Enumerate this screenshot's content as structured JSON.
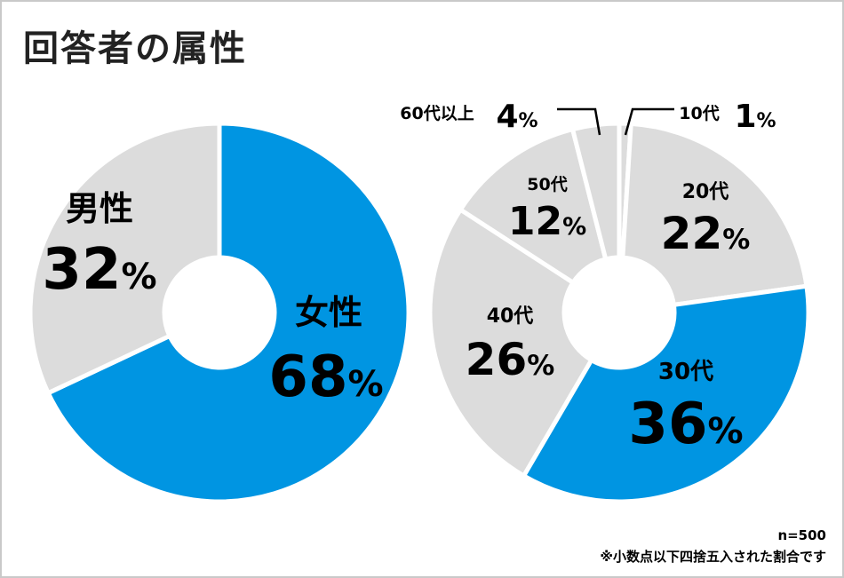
{
  "title": "回答者の属性",
  "colors": {
    "highlight": "#0095e2",
    "gray": "#dcdcdc",
    "divider": "#ffffff"
  },
  "chart_data": [
    {
      "type": "pie",
      "categories": [
        "女性",
        "男性"
      ],
      "values": [
        68,
        32
      ],
      "value_labels": [
        "68%",
        "32%"
      ],
      "highlighted": [
        "女性"
      ]
    },
    {
      "type": "pie",
      "categories": [
        "10代",
        "20代",
        "30代",
        "40代",
        "50代",
        "60代以上"
      ],
      "values": [
        1,
        22,
        36,
        26,
        12,
        4
      ],
      "value_labels": [
        "1%",
        "22%",
        "36%",
        "26%",
        "12%",
        "4%"
      ],
      "highlighted": [
        "30代"
      ]
    }
  ],
  "footnote": {
    "n": "n=500",
    "note": "※小数点以下四捨五入された割合です"
  }
}
